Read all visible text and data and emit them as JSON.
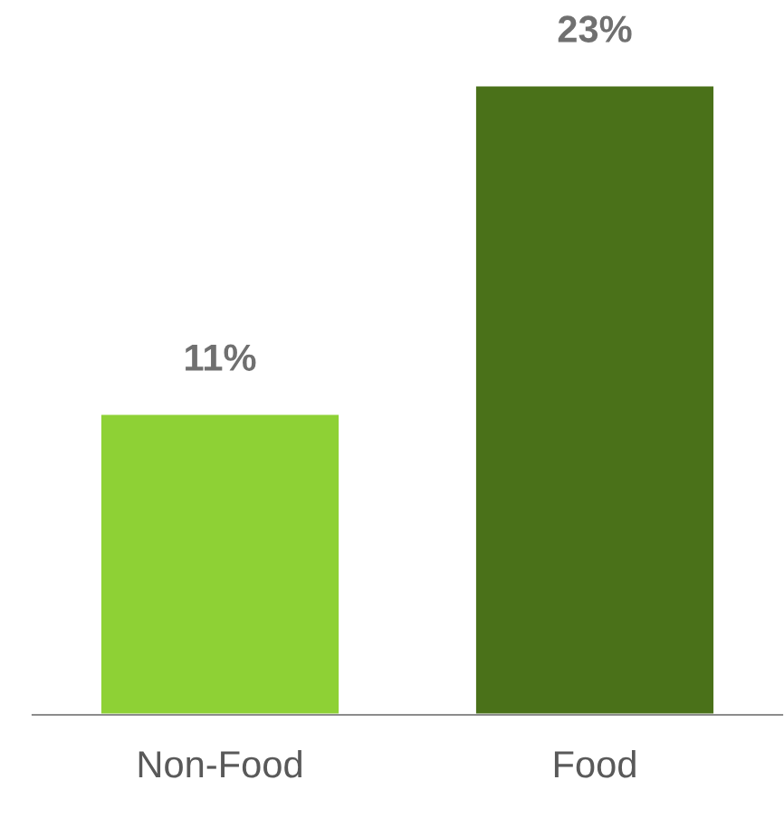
{
  "chart_data": {
    "type": "bar",
    "categories": [
      "Non-Food",
      "Food"
    ],
    "values": [
      11,
      23
    ],
    "colors": [
      "#8ed135",
      "#4a7119"
    ],
    "value_labels": [
      "11%",
      "23%"
    ],
    "grid": false,
    "legend": false
  }
}
